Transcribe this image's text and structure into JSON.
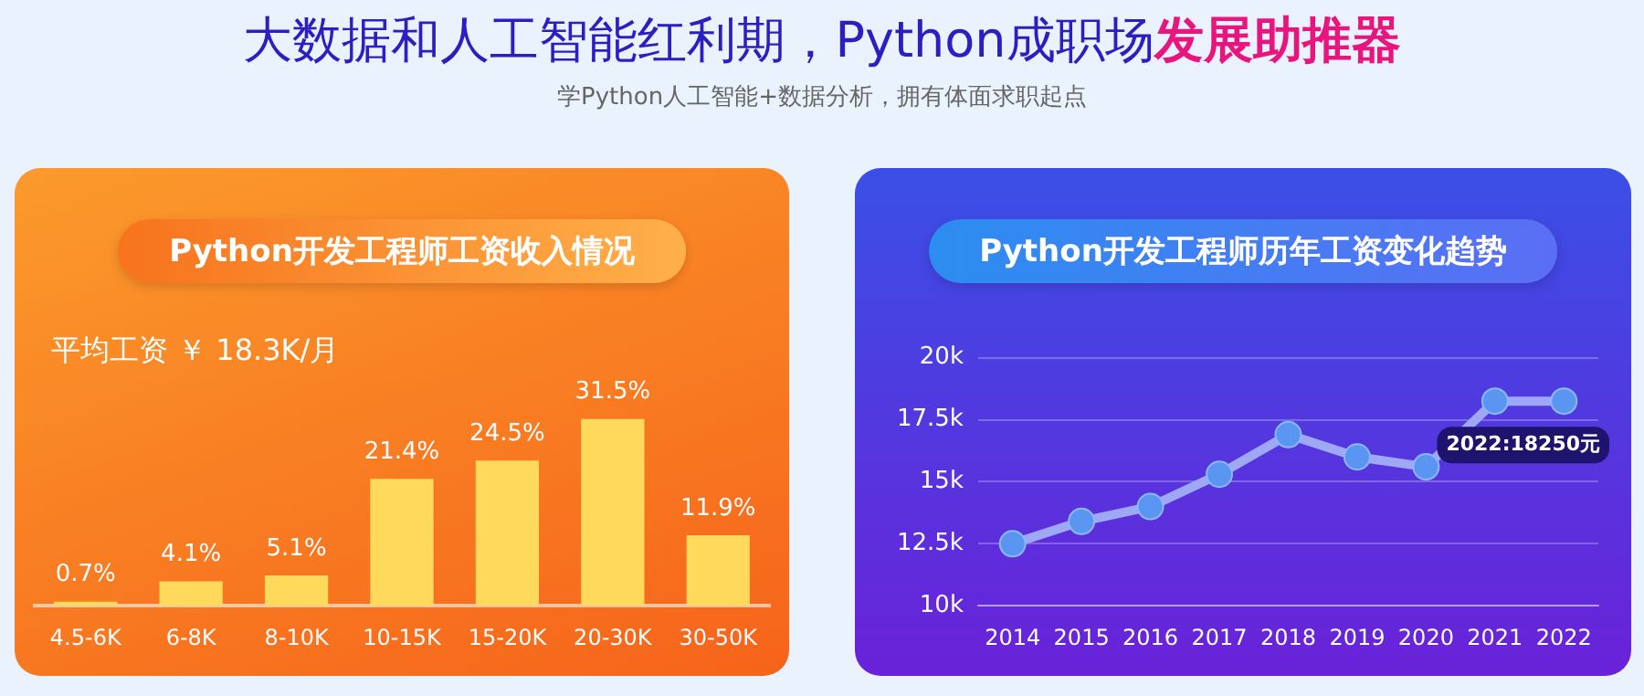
{
  "chart_data": [
    {
      "type": "bar",
      "title": "Python开发工程师工资收入情况",
      "annotations": [
        "大数据和人工智能红利期，Python成职场",
        "发展助推器",
        "学Python人工智能+数据分析，拥有体面求职起点",
        "平均工资 ￥ 18.3K/月"
      ],
      "categories": [
        "4.5-6K",
        "6-8K",
        "8-10K",
        "10-15K",
        "15-20K",
        "20-30K",
        "30-50K"
      ],
      "values": [
        0.7,
        4.1,
        5.1,
        21.4,
        24.5,
        31.5,
        11.9
      ],
      "value_labels": [
        "0.7%",
        "4.1%",
        "5.1%",
        "21.4%",
        "24.5%",
        "31.5%",
        "11.9%"
      ],
      "color": "#ffd95c",
      "grid": false,
      "legend": false,
      "tick_labels": "x"
    },
    {
      "type": "line",
      "title": "Python开发工程师历年工资变化趋势",
      "categories": [
        "2014",
        "2015",
        "2016",
        "2017",
        "2018",
        "2019",
        "2020",
        "2021",
        "2022"
      ],
      "series": [
        {
          "color": "#9fa8f5",
          "values": [
            12500,
            13400,
            14000,
            15300,
            16900,
            16000,
            15600,
            18250,
            18250
          ]
        }
      ],
      "ylim": [
        10000,
        20000
      ],
      "yticks": [
        {
          "value": 10000,
          "label": "10k"
        },
        {
          "value": 12500,
          "label": "12.5k"
        },
        {
          "value": 15000,
          "label": "15k"
        },
        {
          "value": 17500,
          "label": "17.5k"
        },
        {
          "value": 20000,
          "label": "20k"
        }
      ],
      "annotations": [
        {
          "text": "2022:18250元",
          "x": "2022",
          "y": 18250
        }
      ],
      "grid": "y",
      "legend": false,
      "marker": "circle",
      "line_style": "solid"
    }
  ]
}
